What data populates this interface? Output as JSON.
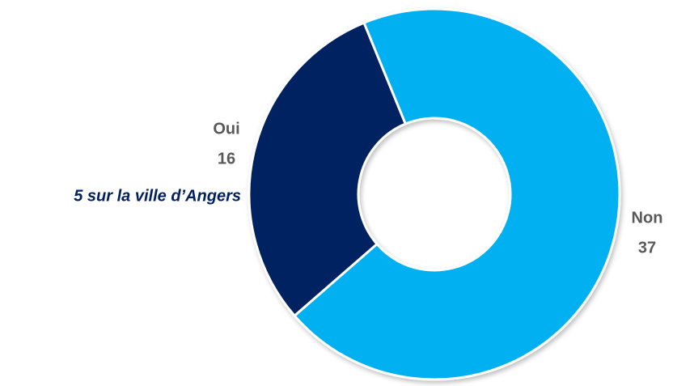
{
  "chart_data": {
    "type": "donut",
    "categories": [
      "Oui",
      "Non"
    ],
    "values": [
      16,
      37
    ],
    "colors": [
      "#002060",
      "#00b0f0"
    ],
    "annotation": "5 sur la ville d’Angers"
  }
}
